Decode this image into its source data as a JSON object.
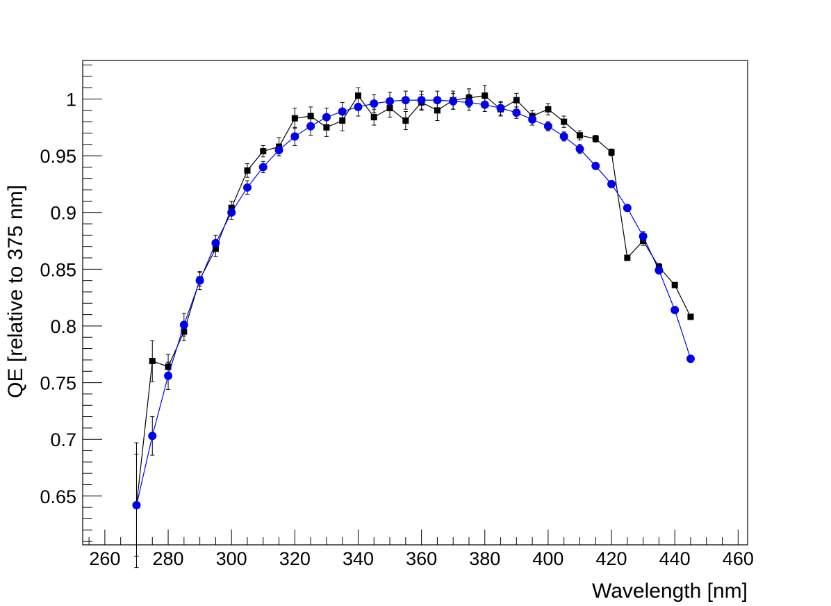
{
  "chart_data": {
    "type": "line",
    "title": "",
    "xlabel": "Wavelength [nm]",
    "ylabel": "QE [relative to 375 nm]",
    "xlim": [
      253,
      463
    ],
    "ylim": [
      0.607,
      1.034
    ],
    "x_ticks": [
      "260",
      "280",
      "300",
      "320",
      "340",
      "360",
      "380",
      "400",
      "420",
      "440",
      "460"
    ],
    "y_ticks": [
      "0.65",
      "0.7",
      "0.75",
      "0.8",
      "0.85",
      "0.9",
      "0.95",
      "1"
    ],
    "grid": false,
    "legend": "none",
    "series": [
      {
        "color": "#000000",
        "marker": "square",
        "x": [
          270,
          275,
          280,
          285,
          290,
          295,
          300,
          305,
          310,
          315,
          320,
          325,
          330,
          335,
          340,
          345,
          350,
          355,
          360,
          365,
          370,
          375,
          380,
          385,
          390,
          395,
          400,
          405,
          410,
          415,
          420,
          425,
          430,
          435,
          440,
          445
        ],
        "y": [
          0.642,
          0.769,
          0.764,
          0.795,
          0.841,
          0.868,
          0.904,
          0.937,
          0.954,
          0.958,
          0.983,
          0.985,
          0.975,
          0.981,
          1.003,
          0.984,
          0.992,
          0.981,
          0.997,
          0.99,
          0.999,
          1.001,
          1.003,
          0.991,
          0.999,
          0.985,
          0.991,
          0.98,
          0.968,
          0.965,
          0.953,
          0.86,
          0.875,
          0.852,
          0.836,
          0.808
        ],
        "err": [
          0.055,
          0.018,
          0.011,
          0.008,
          0.006,
          0.007,
          0.006,
          0.006,
          0.005,
          0.008,
          0.009,
          0.008,
          0.008,
          0.009,
          0.007,
          0.007,
          0.008,
          0.008,
          0.007,
          0.009,
          0.008,
          0.008,
          0.009,
          0.006,
          0.006,
          0.005,
          0.005,
          0.005,
          0.004,
          0.003,
          0.003,
          0.002,
          0.004,
          0.003,
          0.002,
          0.002
        ]
      },
      {
        "color": "#0000ee",
        "marker": "circle",
        "x": [
          270,
          275,
          280,
          285,
          290,
          295,
          300,
          305,
          310,
          315,
          320,
          325,
          330,
          335,
          340,
          345,
          350,
          355,
          360,
          365,
          370,
          375,
          380,
          385,
          390,
          395,
          400,
          405,
          410,
          415,
          420,
          425,
          430,
          435,
          440,
          445
        ],
        "y": [
          0.642,
          0.703,
          0.756,
          0.801,
          0.84,
          0.873,
          0.9,
          0.922,
          0.94,
          0.955,
          0.967,
          0.976,
          0.984,
          0.989,
          0.993,
          0.996,
          0.998,
          0.999,
          0.999,
          0.999,
          0.998,
          0.997,
          0.995,
          0.992,
          0.988,
          0.982,
          0.976,
          0.967,
          0.956,
          0.941,
          0.925,
          0.904,
          0.879,
          0.849,
          0.814,
          0.771
        ],
        "err": [
          0.045,
          0.017,
          0.012,
          0.01,
          0.008,
          0.007,
          0.006,
          0.006,
          0.005,
          0.005,
          0.008,
          0.008,
          0.008,
          0.008,
          0.008,
          0.008,
          0.008,
          0.008,
          0.008,
          0.008,
          0.007,
          0.007,
          0.006,
          0.006,
          0.005,
          0.005,
          0.004,
          0.004,
          0.004,
          0.003,
          0.003,
          0.003,
          0.004,
          0.003,
          0.003,
          0.002
        ]
      }
    ]
  }
}
